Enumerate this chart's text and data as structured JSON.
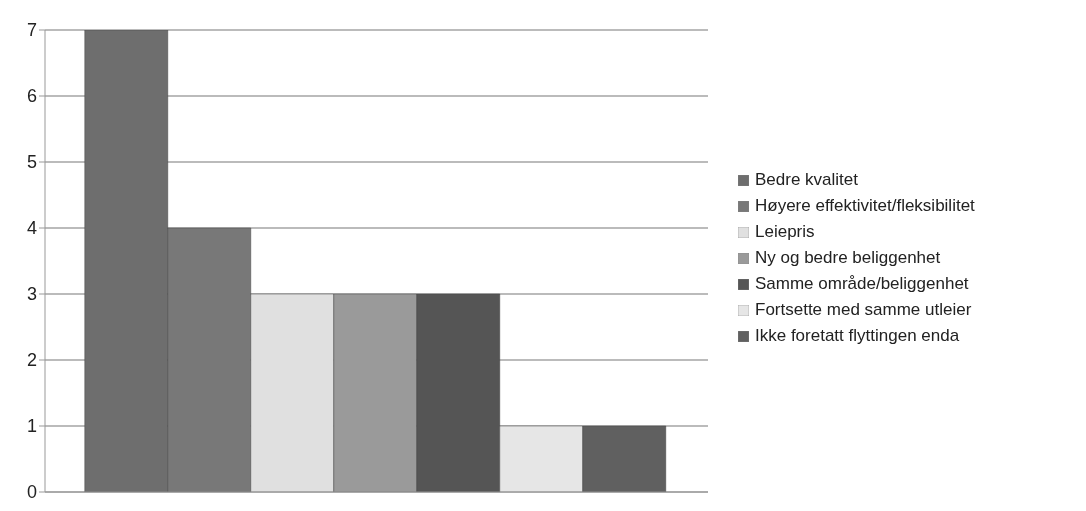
{
  "chart_data": {
    "type": "bar",
    "categories": [
      null
    ],
    "series": [
      {
        "name": "Bedre kvalitet",
        "color": "#6e6e6e",
        "values": [
          7
        ]
      },
      {
        "name": "Høyere effektivitet/fleksibilitet",
        "color": "#787878",
        "values": [
          4
        ]
      },
      {
        "name": "Leiepris",
        "color": "#e0e0e0",
        "values": [
          3
        ]
      },
      {
        "name": "Ny og bedre beliggenhet",
        "color": "#9a9a9a",
        "values": [
          3
        ]
      },
      {
        "name": "Samme område/beliggenhet",
        "color": "#555555",
        "values": [
          3
        ]
      },
      {
        "name": "Fortsette med samme utleier",
        "color": "#e6e6e6",
        "values": [
          1
        ]
      },
      {
        "name": "Ikke foretatt flyttingen enda",
        "color": "#606060",
        "values": [
          1
        ]
      }
    ],
    "ylim": [
      0,
      7
    ],
    "yticks": [
      0,
      1,
      2,
      3,
      4,
      5,
      6,
      7
    ],
    "grid": "y",
    "legend": "right"
  }
}
